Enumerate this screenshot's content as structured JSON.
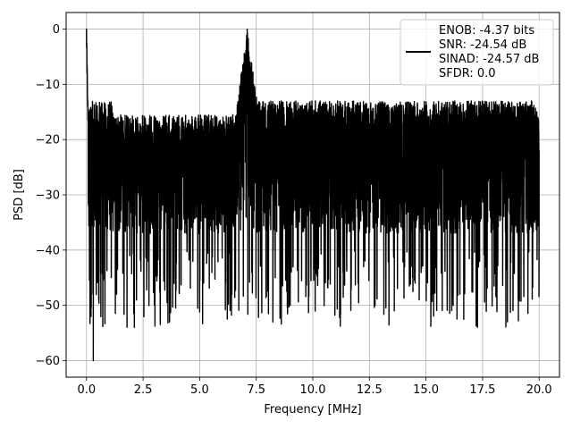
{
  "chart_data": {
    "type": "line",
    "xlabel": "Frequency [MHz]",
    "ylabel": "PSD [dB]",
    "xlim": [
      -0.9,
      20.9
    ],
    "ylim": [
      -63,
      3
    ],
    "xticks": [
      0.0,
      2.5,
      5.0,
      7.5,
      10.0,
      12.5,
      15.0,
      17.5,
      20.0
    ],
    "xtick_labels": [
      "0.0",
      "2.5",
      "5.0",
      "7.5",
      "10.0",
      "12.5",
      "15.0",
      "17.5",
      "20.0"
    ],
    "yticks": [
      0,
      -10,
      -20,
      -30,
      -40,
      -50,
      -60
    ],
    "ytick_labels": [
      "0",
      "−10",
      "−20",
      "−30",
      "−40",
      "−50",
      "−60"
    ],
    "grid": true,
    "legend_position": "top-right",
    "legend_entries": [
      "ENOB: -4.37 bits",
      "SNR: -24.54 dB",
      "SINAD: -24.57 dB",
      "SFDR: 0.0"
    ],
    "series": [
      {
        "color": "#000000",
        "x_range": [
          0.0,
          20.0
        ],
        "dc_peak": 0.0,
        "tone_frequency": 7.1,
        "tone_peak": 0.0,
        "noise_floor_mean": -22,
        "noise_upper_envelope": -13,
        "noise_lower_envelope_typical": -37,
        "noise_deep_minimum": -60,
        "x": [
          0.0,
          0.02,
          0.05,
          0.1,
          0.2,
          0.3,
          0.5,
          1.0,
          2.0,
          3.0,
          4.0,
          5.0,
          6.0,
          6.8,
          6.95,
          7.05,
          7.1,
          7.15,
          7.3,
          7.6,
          8.0,
          9.0,
          10.0,
          11.0,
          12.0,
          13.0,
          13.6,
          14.0,
          14.7,
          15.0,
          16.0,
          16.5,
          17.0,
          18.0,
          18.6,
          19.0,
          20.0
        ],
        "y": [
          0.0,
          -8,
          -14,
          -20,
          -52,
          -60,
          -30,
          -22,
          -24,
          -50,
          -21,
          -40,
          -28,
          -20,
          -31,
          -14,
          0.0,
          -5,
          -10,
          -14,
          -20,
          -50,
          -24,
          -20,
          -46,
          -21,
          -51,
          -22,
          -49,
          -24,
          -21,
          -48,
          -13,
          -22,
          -53,
          -24,
          -22
        ]
      }
    ]
  }
}
